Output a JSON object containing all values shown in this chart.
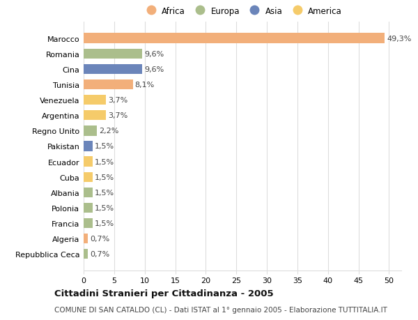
{
  "countries": [
    "Repubblica Ceca",
    "Algeria",
    "Francia",
    "Polonia",
    "Albania",
    "Cuba",
    "Ecuador",
    "Pakistan",
    "Regno Unito",
    "Argentina",
    "Venezuela",
    "Tunisia",
    "Cina",
    "Romania",
    "Marocco"
  ],
  "values": [
    0.7,
    0.7,
    1.5,
    1.5,
    1.5,
    1.5,
    1.5,
    1.5,
    2.2,
    3.7,
    3.7,
    8.1,
    9.6,
    9.6,
    49.3
  ],
  "continents": [
    "Europa",
    "Africa",
    "Europa",
    "Europa",
    "Europa",
    "America",
    "America",
    "Asia",
    "Europa",
    "America",
    "America",
    "Africa",
    "Asia",
    "Europa",
    "Africa"
  ],
  "continent_colors": {
    "Africa": "#F2AF7A",
    "Europa": "#ABBE8C",
    "Asia": "#6B85BA",
    "America": "#F5CB6A"
  },
  "legend_order": [
    "Africa",
    "Europa",
    "Asia",
    "America"
  ],
  "title": "Cittadini Stranieri per Cittadinanza - 2005",
  "subtitle": "COMUNE DI SAN CATALDO (CL) - Dati ISTAT al 1° gennaio 2005 - Elaborazione TUTTITALIA.IT",
  "xlim": [
    0,
    52
  ],
  "xticks": [
    0,
    5,
    10,
    15,
    20,
    25,
    30,
    35,
    40,
    45,
    50
  ],
  "background_color": "#ffffff",
  "grid_color": "#dddddd",
  "bar_height": 0.65,
  "label_fontsize": 8,
  "tick_fontsize": 8,
  "title_fontsize": 9.5,
  "subtitle_fontsize": 7.5
}
